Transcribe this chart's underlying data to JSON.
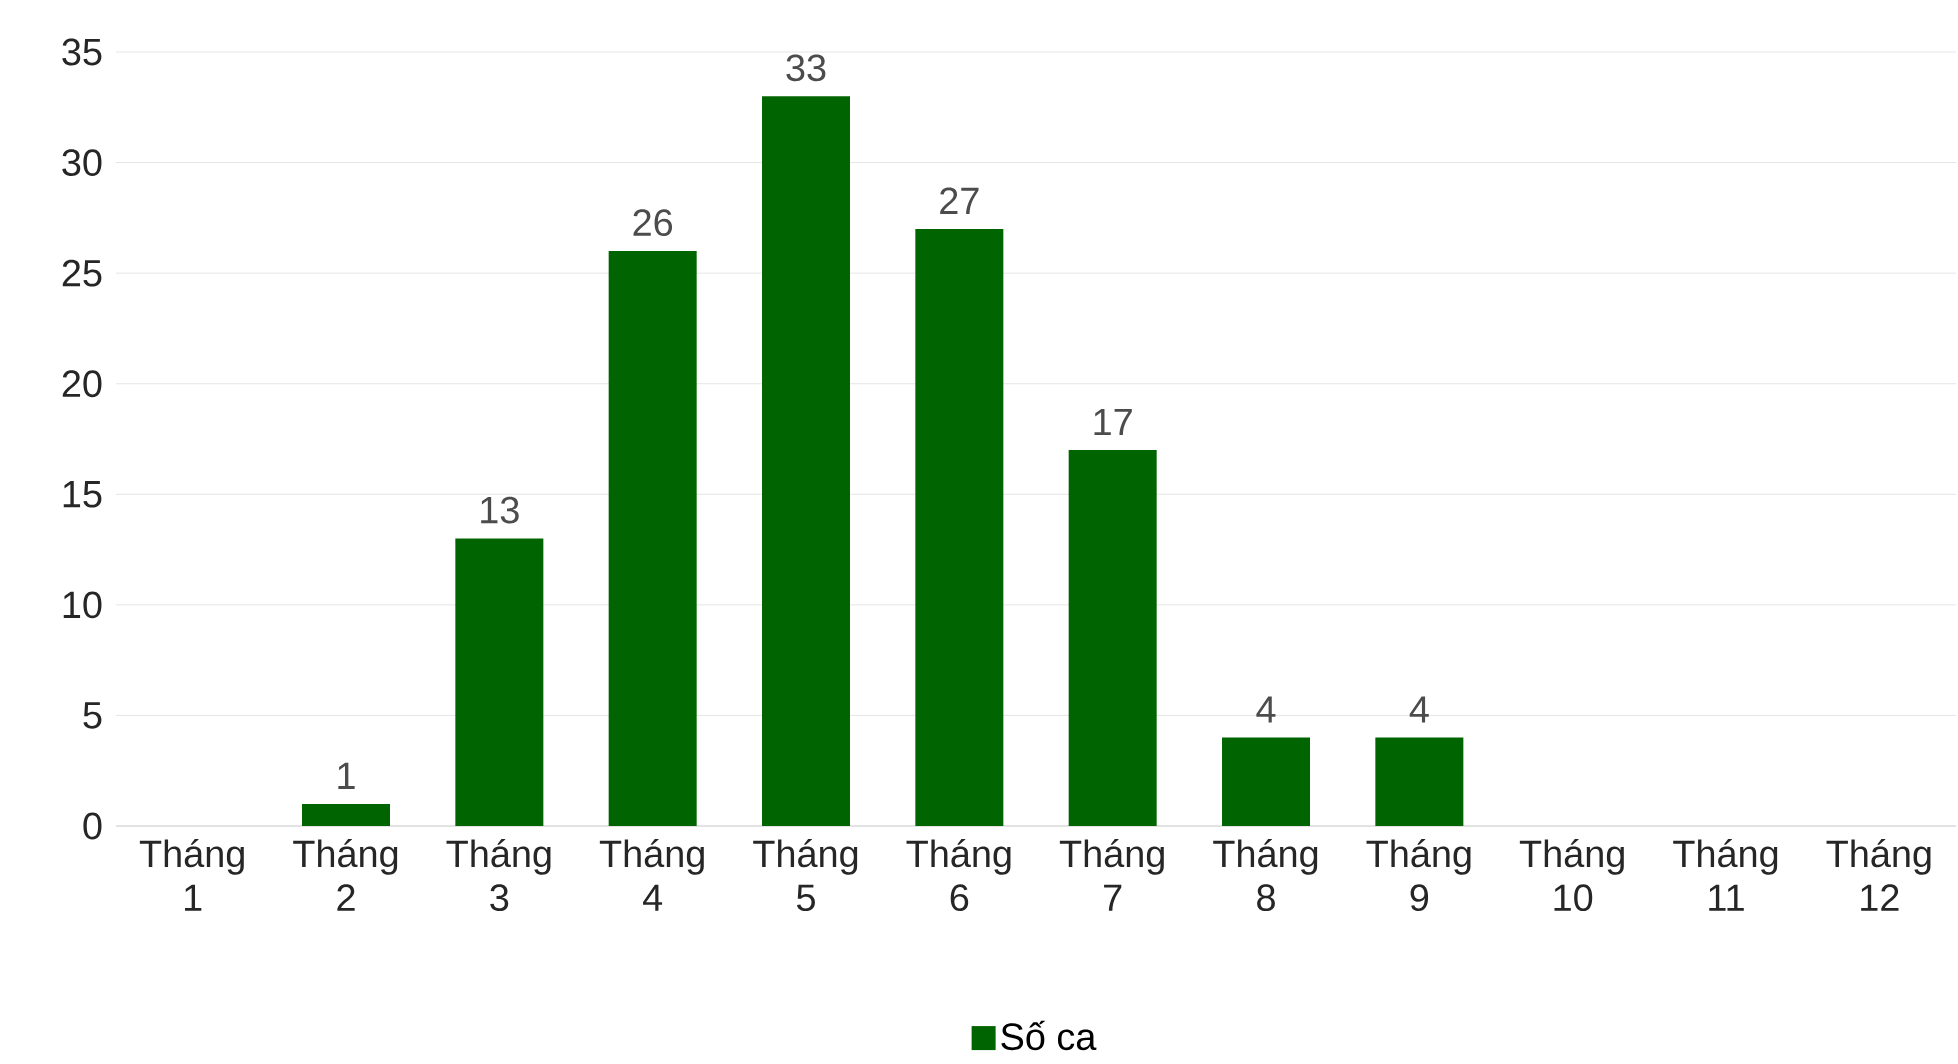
{
  "chart_data": {
    "type": "bar",
    "categories": [
      "Tháng 1",
      "Tháng 2",
      "Tháng 3",
      "Tháng 4",
      "Tháng 5",
      "Tháng 6",
      "Tháng 7",
      "Tháng 8",
      "Tháng 9",
      "Tháng 10",
      "Tháng 11",
      "Tháng 12"
    ],
    "series": [
      {
        "name": "Số ca",
        "color": "#006400",
        "values": [
          null,
          1,
          13,
          26,
          33,
          27,
          17,
          4,
          4,
          null,
          null,
          null
        ]
      }
    ],
    "ylim": [
      0,
      35
    ],
    "yticks": [
      0,
      5,
      10,
      15,
      20,
      25,
      30,
      35
    ],
    "grid": "y",
    "legend": "bottom",
    "data_labels": true
  }
}
